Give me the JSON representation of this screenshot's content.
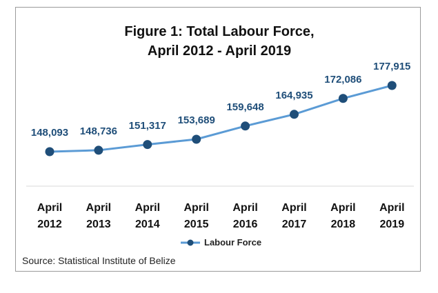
{
  "chart_data": {
    "type": "line",
    "title": "Figure 1: Total Labour Force, April 2012 - April 2019",
    "categories": [
      "April 2012",
      "April 2013",
      "April 2014",
      "April 2015",
      "April 2016",
      "April 2017",
      "April 2018",
      "April 2019"
    ],
    "series": [
      {
        "name": "Labour Force",
        "color": "#5b9bd5",
        "marker_color": "#1f4e79",
        "values": [
          148093,
          148736,
          151317,
          153689,
          159648,
          164935,
          172086,
          177915
        ],
        "value_labels": [
          "148,093",
          "148,736",
          "151,317",
          "153,689",
          "159,648",
          "164,935",
          "172,086",
          "177,915"
        ]
      }
    ],
    "source": "Source: Statistical Institute of Belize"
  }
}
